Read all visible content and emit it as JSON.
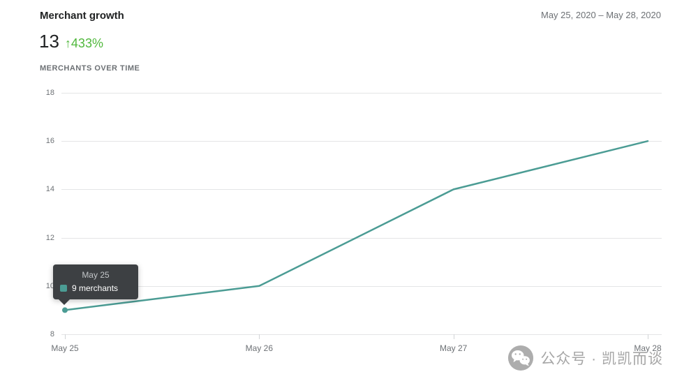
{
  "header": {
    "title": "Merchant growth",
    "date_range": "May 25, 2020 – May 28, 2020",
    "metric_value": "13",
    "delta_arrow": "↑",
    "delta_value": "433%",
    "section_label": "MERCHANTS OVER TIME"
  },
  "tooltip": {
    "date": "May 25",
    "label": "9 merchants"
  },
  "watermark": "公众号 · 凯凯而谈",
  "colors": {
    "line": "#4b9c94",
    "delta_green": "#50b83c",
    "tooltip_bg": "#3d4043"
  },
  "chart_data": {
    "type": "line",
    "title": "Merchants over time",
    "x": [
      "May 25",
      "May 26",
      "May 27",
      "May 28"
    ],
    "series": [
      {
        "name": "merchants",
        "values": [
          9,
          10,
          14,
          16
        ]
      }
    ],
    "yticks": [
      18,
      16,
      14,
      12,
      10,
      8
    ],
    "ylim": [
      8,
      18
    ],
    "grid": true,
    "legend": "none",
    "hover": {
      "index": 0,
      "x": "May 25",
      "value": 9
    }
  }
}
